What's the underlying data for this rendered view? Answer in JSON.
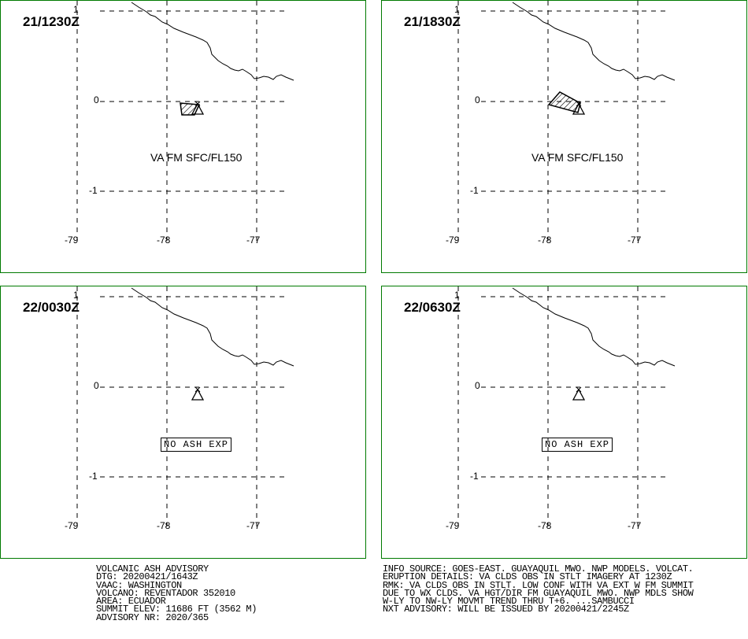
{
  "colors": {
    "frame": "#007a00",
    "ink": "#000000",
    "background": "#ffffff"
  },
  "panels": [
    {
      "time": "21/1230Z",
      "status": "ash",
      "label": "VA FM SFC/FL150",
      "ash_polygon": "small"
    },
    {
      "time": "21/1830Z",
      "status": "ash",
      "label": "VA FM SFC/FL150",
      "ash_polygon": "large"
    },
    {
      "time": "22/0030Z",
      "status": "none",
      "label": "NO ASH EXP"
    },
    {
      "time": "22/0630Z",
      "status": "none",
      "label": "NO ASH EXP"
    }
  ],
  "axes": {
    "lat_labels": [
      "1",
      "0",
      "-1"
    ],
    "lon_labels": [
      "-79",
      "-78",
      "-77"
    ]
  },
  "volcano_icon": "triangle-volcano-icon",
  "advisory": {
    "left_lines": [
      "VOLCANIC ASH ADVISORY",
      "DTG: 20200421/1643Z",
      "VAAC: WASHINGTON",
      "VOLCANO: REVENTADOR 352010",
      "AREA: ECUADOR",
      "SUMMIT ELEV: 11686 FT (3562 M)",
      "ADVISORY NR: 2020/365"
    ],
    "right_lines": [
      "INFO SOURCE: GOES-EAST. GUAYAQUIL MWO. NWP MODELS. VOLCAT.",
      "ERUPTION DETAILS: VA CLDS OBS IN STLT IMAGERY AT 1230Z",
      "RMK: VA CLDS OBS IN STLT. LOW CONF WITH VA EXT W FM SUMMIT",
      "DUE TO WX CLDS. VA HGT/DIR FM GUAYAQUIL MWO. NWP MDLS SHOW",
      "W-LY TO NW-LY MOVMT TREND THRU T+6. ...SAMBUCCI",
      "NXT ADVISORY: WILL BE ISSUED BY 20200421/2245Z"
    ]
  }
}
